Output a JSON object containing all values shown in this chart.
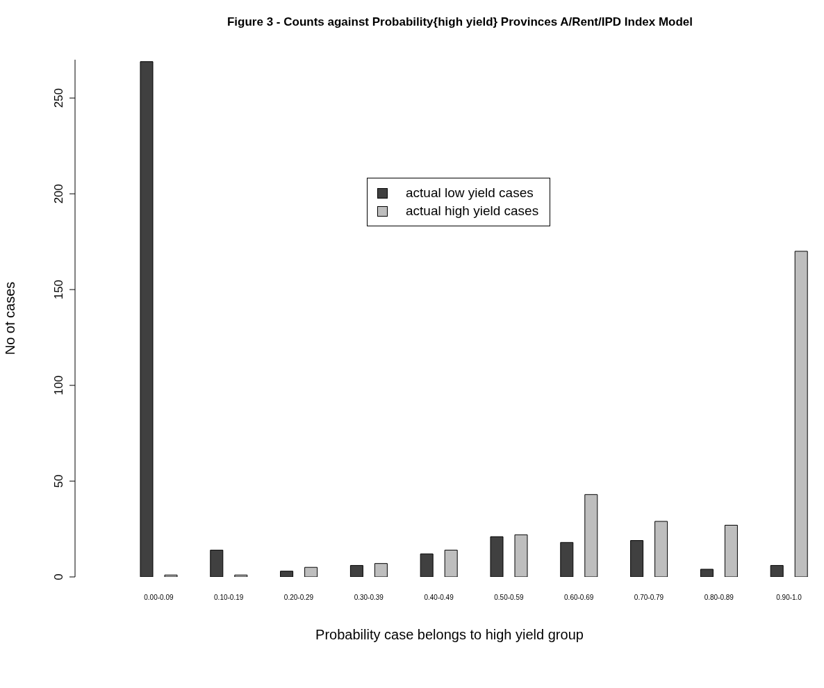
{
  "chart_data": {
    "type": "bar",
    "title": "Figure 3 - Counts against Probability{high yield} Provinces A/Rent/IPD Index Model",
    "xlabel": "Probability case belongs to high yield group",
    "ylabel": "No of cases",
    "categories": [
      "0.00-0.09",
      "0.10-0.19",
      "0.20-0.29",
      "0.30-0.39",
      "0.40-0.49",
      "0.50-0.59",
      "0.60-0.69",
      "0.70-0.79",
      "0.80-0.89",
      "0.90-1.0"
    ],
    "series": [
      {
        "name": "actual low yield cases",
        "color": "#404040",
        "values": [
          269,
          14,
          3,
          6,
          12,
          21,
          18,
          19,
          4,
          6
        ]
      },
      {
        "name": "actual high yield cases",
        "color": "#bebebe",
        "values": [
          1,
          1,
          5,
          7,
          14,
          22,
          43,
          29,
          27,
          170
        ]
      }
    ],
    "ylim": [
      0,
      270
    ],
    "yticks": [
      0,
      50,
      100,
      150,
      200,
      250
    ],
    "grid": false,
    "legend": "top"
  }
}
